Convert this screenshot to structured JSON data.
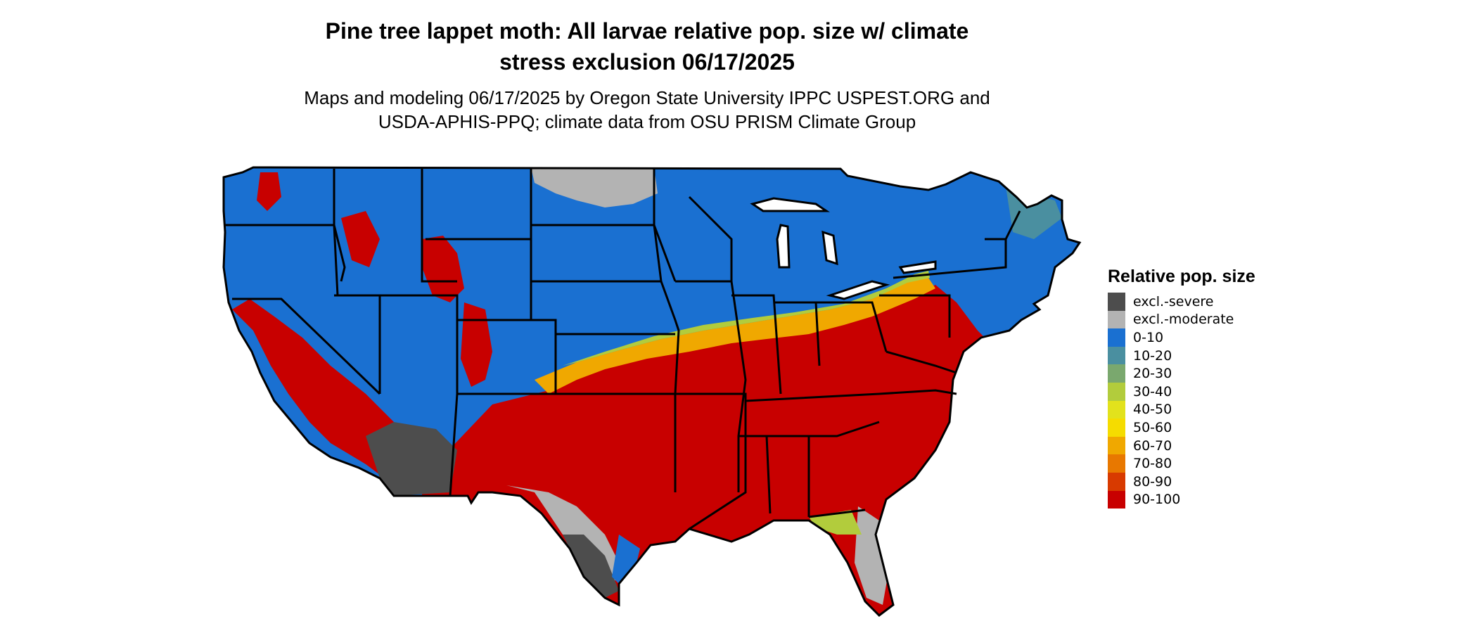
{
  "header": {
    "title_line1": "Pine tree lappet moth: All larvae relative pop. size w/ climate",
    "title_line2": "stress exclusion 06/17/2025",
    "subtitle_line1": "Maps and modeling 06/17/2025 by Oregon State University IPPC USPEST.ORG and",
    "subtitle_line2": "USDA-APHIS-PPQ; climate data from OSU PRISM Climate Group"
  },
  "legend": {
    "title": "Relative pop. size",
    "items": [
      {
        "label": "excl.-severe",
        "color": "#4d4d4d"
      },
      {
        "label": "excl.-moderate",
        "color": "#b3b3b3"
      },
      {
        "label": "0-10",
        "color": "#1a70d1"
      },
      {
        "label": "10-20",
        "color": "#4a8fa0"
      },
      {
        "label": "20-30",
        "color": "#7aa86e"
      },
      {
        "label": "30-40",
        "color": "#b2cc3c"
      },
      {
        "label": "40-50",
        "color": "#e2e21c"
      },
      {
        "label": "50-60",
        "color": "#f5dc00"
      },
      {
        "label": "60-70",
        "color": "#f0a800"
      },
      {
        "label": "70-80",
        "color": "#e87800"
      },
      {
        "label": "80-90",
        "color": "#d83a00"
      },
      {
        "label": "90-100",
        "color": "#c80000"
      }
    ]
  },
  "map": {
    "region": "Contiguous United States",
    "colors": {
      "red": "#c80000",
      "blue": "#1a70d1",
      "grey": "#b3b3b3",
      "dark": "#4d4d4d",
      "orange": "#f0a800",
      "lightgreen": "#b2cc3c",
      "teal": "#4a8fa0",
      "border": "#000000"
    }
  }
}
